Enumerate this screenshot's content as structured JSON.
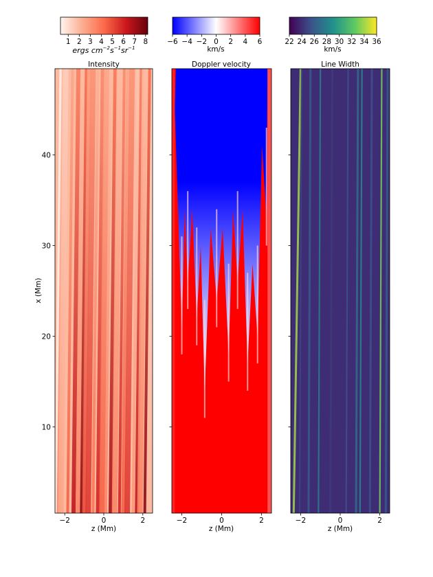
{
  "chart_data": [
    {
      "type": "heatmap",
      "title": "Intensity",
      "xlabel": "z (Mm)",
      "ylabel": "x (Mm)",
      "xlim": [
        -2.5,
        2.5
      ],
      "ylim": [
        0.5,
        49.5
      ],
      "xticks": [
        -2,
        0,
        2
      ],
      "yticks": [
        10,
        20,
        30,
        40
      ],
      "colormap": "Reds",
      "colorbar": {
        "label": "ergs cm^-2 s^-1 sr^-1",
        "ticks": [
          1,
          2,
          3,
          4,
          5,
          6,
          7,
          8
        ],
        "range": [
          0.3,
          8.2
        ]
      },
      "streaks_z": [
        -2.45,
        -2.3,
        -2.2,
        -1.85,
        -1.55,
        -1.3,
        -1.15,
        -1.0,
        -0.8,
        -0.55,
        -0.3,
        -0.1,
        0.1,
        0.35,
        0.55,
        0.8,
        1.0,
        1.2,
        1.5,
        1.7,
        1.85,
        2.1,
        2.3
      ],
      "streaks_value": [
        0.8,
        3.5,
        2.5,
        4.5,
        6.5,
        3.5,
        7.5,
        5,
        5.5,
        4,
        6,
        4.5,
        3.5,
        7,
        3.5,
        6,
        4.5,
        5.5,
        3,
        6.5,
        3.5,
        7.5,
        2
      ]
    },
    {
      "type": "heatmap",
      "title": "Doppler velocity",
      "xlabel": "z (Mm)",
      "xlim": [
        -2.5,
        2.5
      ],
      "ylim": [
        0.5,
        49.5
      ],
      "xticks": [
        -2,
        0,
        2
      ],
      "colormap": "bwr",
      "colorbar": {
        "label": "km/s",
        "ticks": [
          -6,
          -4,
          -2,
          0,
          2,
          4,
          6
        ],
        "range": [
          -6,
          6
        ]
      },
      "fingers_tip_z": [
        -2.0,
        -1.7,
        -1.25,
        -0.85,
        -0.25,
        0.35,
        0.8,
        1.3,
        1.8,
        2.25
      ],
      "fingers_tip_x": [
        21,
        26,
        22,
        14,
        24,
        18,
        26,
        17,
        20,
        33
      ]
    },
    {
      "type": "heatmap",
      "title": "Line Width",
      "xlabel": "z (Mm)",
      "xlim": [
        -2.5,
        2.5
      ],
      "ylim": [
        0.5,
        49.5
      ],
      "xticks": [
        -2,
        0,
        2
      ],
      "colormap": "viridis",
      "colorbar": {
        "label": "km/s",
        "ticks": [
          22,
          24,
          26,
          28,
          30,
          32,
          34,
          36
        ],
        "range": [
          22,
          36
        ]
      },
      "streaks_z": [
        -2.35,
        -2.05,
        -1.6,
        -1.1,
        -0.5,
        0.3,
        0.8,
        1.0,
        1.5,
        2.0,
        2.3
      ],
      "streaks_value": [
        34,
        25,
        26,
        28,
        24.5,
        25.5,
        27,
        28.5,
        25.5,
        33,
        26
      ]
    }
  ]
}
